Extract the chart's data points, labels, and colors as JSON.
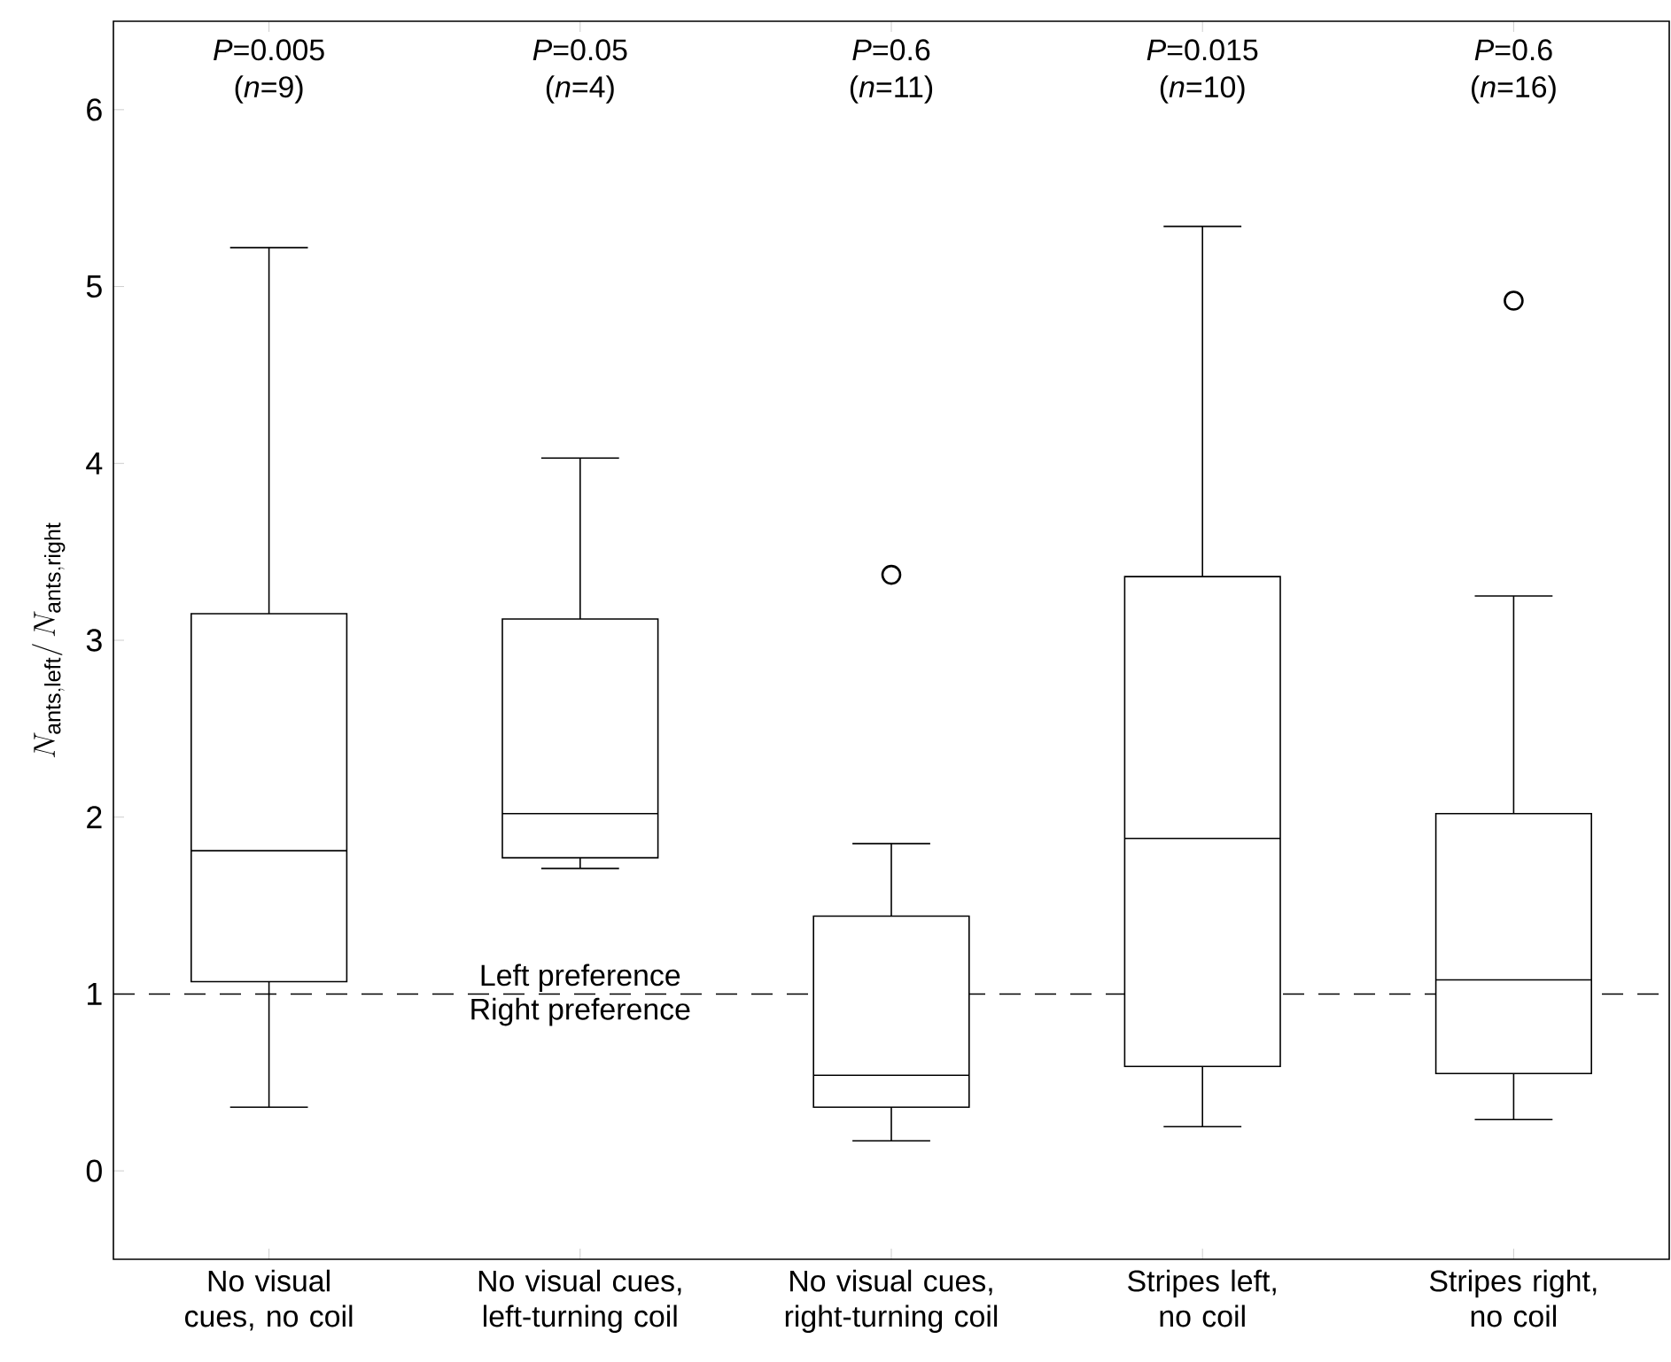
{
  "chart_data": {
    "type": "box",
    "ylabel": "N_{\\mathrm{ants,left}}/\\,N_{\\mathrm{ants,right}}",
    "categories": [
      "No visual cues, no coil",
      "No visual cues, left-turning coil",
      "No visual cues, right-turning coil",
      "Stripes left, no coil",
      "Stripes right, no coil"
    ],
    "boxes": [
      {
        "low": 0.36,
        "q1": 1.07,
        "median": 1.81,
        "q3": 3.15,
        "high": 5.22
      },
      {
        "low": 1.71,
        "q1": 1.77,
        "median": 2.02,
        "q3": 3.12,
        "high": 4.03
      },
      {
        "low": 0.17,
        "q1": 0.36,
        "median": 0.54,
        "q3": 1.44,
        "high": 1.85,
        "outliers": [
          3.37
        ]
      },
      {
        "low": 0.25,
        "q1": 0.59,
        "median": 1.88,
        "q3": 3.36,
        "high": 5.34
      },
      {
        "low": 0.29,
        "q1": 0.55,
        "median": 1.08,
        "q3": 2.02,
        "high": 3.25,
        "outliers": [
          4.92
        ]
      }
    ],
    "color": "#000000",
    "ylim": [
      -0.5,
      6.5
    ],
    "yticks": [
      0,
      1,
      2,
      3,
      4,
      5,
      6
    ],
    "ref_lines": [
      {
        "axis": "y",
        "value": 1,
        "label": "Left preference",
        "line_style": "dashed",
        "color": "#000000"
      }
    ],
    "annotations": [
      "*P*=0.005 (*n*=9)",
      "*P*=0.05 (*n*=4)",
      "*P*=0.6 (*n*=11)",
      "*P*=0.015 (*n*=10)",
      "*P*=0.6 (*n*=16)",
      "Right preference"
    ]
  }
}
